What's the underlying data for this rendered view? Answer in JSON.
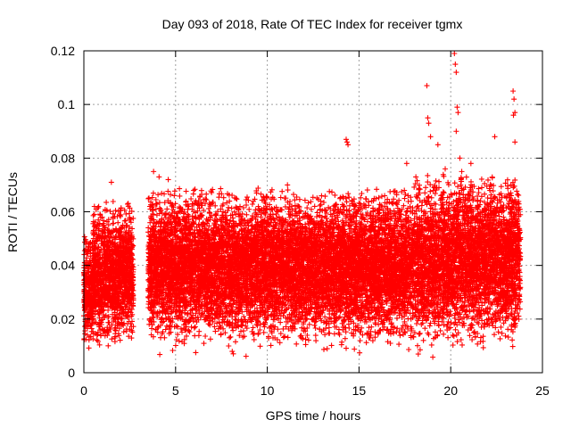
{
  "chart_data": {
    "type": "scatter",
    "title": "Day 093 of 2018, Rate Of TEC Index for receiver tgmx",
    "xlabel": "GPS time / hours",
    "ylabel": "ROTI / TECUs",
    "xlim": [
      0,
      25
    ],
    "ylim": [
      0,
      0.12
    ],
    "x_ticks": [
      "0",
      "5",
      "10",
      "15",
      "20",
      "25"
    ],
    "y_ticks": [
      "0",
      "0.02",
      "0.04",
      "0.06",
      "0.08",
      "0.1",
      "0.12"
    ],
    "grid": true,
    "marker": "plus",
    "series_color": "#ff0000",
    "data_gaps_hours": [
      [
        2.7,
        3.5
      ]
    ],
    "density_profile": [
      {
        "x": [
          0.0,
          0.5
        ],
        "y_range": [
          0.005,
          0.05
        ]
      },
      {
        "x": [
          0.5,
          2.7
        ],
        "y_range": [
          0.005,
          0.06
        ]
      },
      {
        "x": [
          3.5,
          18.0
        ],
        "y_range": [
          0.005,
          0.065
        ]
      },
      {
        "x": [
          18.0,
          23.8
        ],
        "y_range": [
          0.005,
          0.07
        ]
      }
    ],
    "outliers": [
      {
        "x": 1.5,
        "y": 0.071
      },
      {
        "x": 3.8,
        "y": 0.075
      },
      {
        "x": 4.1,
        "y": 0.073
      },
      {
        "x": 4.6,
        "y": 0.072
      },
      {
        "x": 11.1,
        "y": 0.07
      },
      {
        "x": 14.3,
        "y": 0.087
      },
      {
        "x": 14.4,
        "y": 0.085
      },
      {
        "x": 14.35,
        "y": 0.086
      },
      {
        "x": 17.6,
        "y": 0.078
      },
      {
        "x": 18.1,
        "y": 0.073
      },
      {
        "x": 18.7,
        "y": 0.107
      },
      {
        "x": 18.75,
        "y": 0.095
      },
      {
        "x": 18.8,
        "y": 0.093
      },
      {
        "x": 18.9,
        "y": 0.088
      },
      {
        "x": 19.3,
        "y": 0.085
      },
      {
        "x": 19.7,
        "y": 0.076
      },
      {
        "x": 20.2,
        "y": 0.119
      },
      {
        "x": 20.25,
        "y": 0.115
      },
      {
        "x": 20.3,
        "y": 0.112
      },
      {
        "x": 20.35,
        "y": 0.099
      },
      {
        "x": 20.4,
        "y": 0.097
      },
      {
        "x": 20.3,
        "y": 0.09
      },
      {
        "x": 20.5,
        "y": 0.08
      },
      {
        "x": 20.6,
        "y": 0.075
      },
      {
        "x": 21.1,
        "y": 0.078
      },
      {
        "x": 22.4,
        "y": 0.088
      },
      {
        "x": 23.4,
        "y": 0.105
      },
      {
        "x": 23.45,
        "y": 0.102
      },
      {
        "x": 23.5,
        "y": 0.097
      },
      {
        "x": 23.42,
        "y": 0.096
      },
      {
        "x": 23.5,
        "y": 0.086
      },
      {
        "x": 23.3,
        "y": 0.066
      }
    ]
  }
}
